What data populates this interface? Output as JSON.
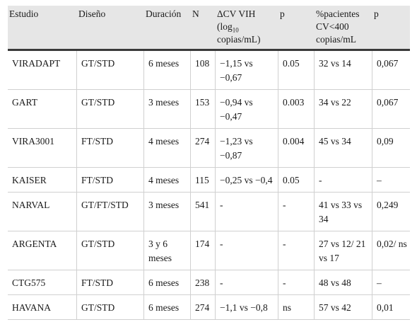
{
  "headers": {
    "study": "Estudio",
    "design": "Diseño",
    "duration": "Duración",
    "n": "N",
    "cv_line1": "ΔCV VIH",
    "cv_line2_pre": "(log",
    "cv_line2_sub": "10",
    "cv_line3": "copias/mL)",
    "p1": "p",
    "pct_line1": "%pacientes",
    "pct_line2": "CV<400",
    "pct_line3": "copias/mL",
    "p2": "p"
  },
  "rows": [
    {
      "study": "VIRADAPT",
      "design": "GT/STD",
      "duration": "6 meses",
      "n": "108",
      "cv": "−1,15 vs −0,67",
      "p1": "0.05",
      "pct": "32 vs 14",
      "p2": "0,067"
    },
    {
      "study": "GART",
      "design": "GT/STD",
      "duration": "3 meses",
      "n": "153",
      "cv": "−0,94 vs −0,47",
      "p1": "0.003",
      "pct": "34 vs 22",
      "p2": "0,067"
    },
    {
      "study": "VIRA3001",
      "design": "FT/STD",
      "duration": "4 meses",
      "n": "274",
      "cv": "−1,23 vs −0,87",
      "p1": "0.004",
      "pct": "45 vs 34",
      "p2": "0,09"
    },
    {
      "study": "KAISER",
      "design": "FT/STD",
      "duration": "4 meses",
      "n": "115",
      "cv": "−0,25 vs −0,4",
      "p1": "0.05",
      "pct": "-",
      "p2": "–"
    },
    {
      "study": "NARVAL",
      "design": "GT/FT/STD",
      "duration": "3 meses",
      "n": "541",
      "cv": "-",
      "p1": "-",
      "pct": "41 vs 33 vs 34",
      "p2": "0,249"
    },
    {
      "study": "ARGENTA",
      "design": "GT/STD",
      "duration": "3 y 6 meses",
      "n": "174",
      "cv": "-",
      "p1": "-",
      "pct": "27 vs 12/ 21 vs 17",
      "p2": "0,02/ ns"
    },
    {
      "study": "CTG575",
      "design": "FT/STD",
      "duration": "6 meses",
      "n": "238",
      "cv": "-",
      "p1": "-",
      "pct": "48 vs 48",
      "p2": "–"
    },
    {
      "study": "HAVANA",
      "design": "GT/STD",
      "duration": "6 meses",
      "n": "274",
      "cv": "−1,1 vs −0,8",
      "p1": "ns",
      "pct": "57 vs 42",
      "p2": "0,01"
    }
  ]
}
